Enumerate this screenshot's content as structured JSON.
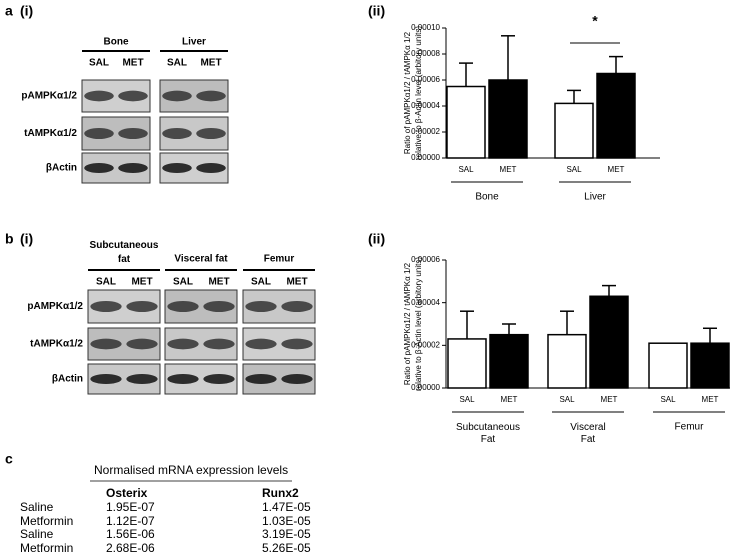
{
  "panel_a": {
    "letter": "a",
    "sub1": "(i)",
    "sub2": "(ii)",
    "blot": {
      "groups": [
        "Bone",
        "Liver"
      ],
      "lanes": [
        "SAL",
        "MET"
      ],
      "rows": [
        "pAMPKα1/2",
        "tAMPKα1/2",
        "βActin"
      ]
    }
  },
  "panel_b": {
    "letter": "b",
    "sub1": "(i)",
    "sub2": "(ii)",
    "blot": {
      "groups": [
        "Subcutaneous fat",
        "Visceral fat",
        "Femur"
      ],
      "lanes": [
        "SAL",
        "MET"
      ],
      "rows": [
        "pAMPKα1/2",
        "tAMPKα1/2",
        "βActin"
      ]
    }
  },
  "panel_c": {
    "letter": "c",
    "title": "Normalised mRNA expression levels",
    "headers": [
      "Osterix",
      "Runx2"
    ],
    "rows": [
      [
        "Saline",
        "1.95E-07",
        "1.47E-05"
      ],
      [
        "Metformin",
        "1.12E-07",
        "1.03E-05"
      ],
      [
        "Saline",
        "1.56E-06",
        "3.19E-05"
      ],
      [
        "Metformin",
        "2.68E-06",
        "5.26E-05"
      ]
    ]
  },
  "chart_data": [
    {
      "type": "bar",
      "ylabel": [
        "Ratio of pAMPKα1/2 / tAMPKα 1/2",
        "relative to β-Actin level (arbitory units)"
      ],
      "categories": [
        "Bone",
        "Liver"
      ],
      "series": [
        {
          "name": "SAL",
          "color": "#ffffff",
          "values": [
            5.5e-05,
            4.2e-05
          ],
          "errors": [
            1.8e-05,
            1e-05
          ]
        },
        {
          "name": "MET",
          "color": "#000000",
          "values": [
            6e-05,
            6.5e-05
          ],
          "errors": [
            3.4e-05,
            1.3e-05
          ]
        }
      ],
      "ylim": [
        0,
        0.0001
      ],
      "yticks": [
        {
          "value": 0,
          "label": "0.00000"
        },
        {
          "value": 2e-05,
          "label": "0.00002"
        },
        {
          "value": 4e-05,
          "label": "0.00004"
        },
        {
          "value": 6e-05,
          "label": "0.00006"
        },
        {
          "value": 8e-05,
          "label": "0.00008"
        },
        {
          "value": 0.0001,
          "label": "0.00010"
        }
      ],
      "annotation": "*"
    },
    {
      "type": "bar",
      "ylabel": [
        "Ratio of pAMPKα1/2 / tAMPKα 1/2",
        "relative to β-Actin level (arbitory units)"
      ],
      "categories": [
        "Subcutaneous Fat",
        "Visceral Fat",
        "Femur"
      ],
      "series": [
        {
          "name": "SAL",
          "color": "#ffffff",
          "values": [
            2.3e-05,
            2.5e-05,
            2.1e-05
          ],
          "errors": [
            1.3e-05,
            1.1e-05,
            null
          ]
        },
        {
          "name": "MET",
          "color": "#000000",
          "values": [
            2.5e-05,
            4.3e-05,
            2.1e-05
          ],
          "errors": [
            5e-06,
            5e-06,
            7e-06
          ]
        }
      ],
      "ylim": [
        0,
        6e-05
      ],
      "yticks": [
        {
          "value": 0,
          "label": "0.00000"
        },
        {
          "value": 2e-05,
          "label": "0.00002"
        },
        {
          "value": 4e-05,
          "label": "0.00004"
        },
        {
          "value": 6e-05,
          "label": "0.00006"
        }
      ]
    }
  ]
}
